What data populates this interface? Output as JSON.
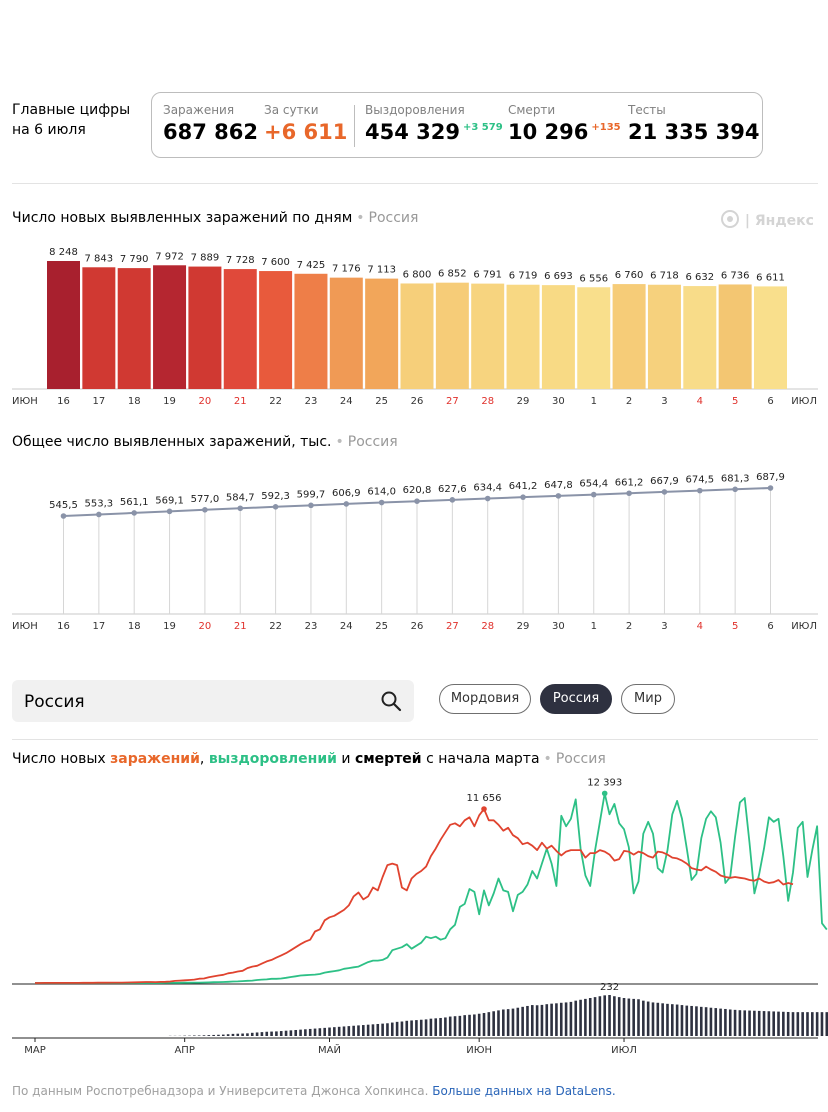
{
  "summary": {
    "title_line1": "Главные цифры",
    "title_line2": "на 6 июля",
    "cases_label": "Заражения",
    "cases_value": "687 862",
    "daily_label": "За сутки",
    "daily_value": "+6 611",
    "recovered_label": "Выздоровления",
    "recovered_value": "454 329",
    "recovered_delta": "+3 579",
    "deaths_label": "Смерти",
    "deaths_value": "10 296",
    "deaths_delta": "+135",
    "tests_label": "Тесты",
    "tests_value": "21 335 394"
  },
  "brand": "Яндекс",
  "colors": {
    "accent_orange": "#e8672a",
    "recovered_green": "#2dc086",
    "deaths_bar": "#2e3140",
    "weekend_red": "#e0302b"
  },
  "search": {
    "value": "Россия"
  },
  "regions": {
    "mordovia": "Мордовия",
    "russia": "Россия",
    "world": "Мир"
  },
  "chart3_title": {
    "p1": "Число новых ",
    "cases": "заражений",
    "p2": ", ",
    "recovered": "выздоровлений",
    "p3": " и ",
    "deaths": "смертей",
    "p4": " с начала марта",
    "region": "Россия"
  },
  "footer": {
    "text": "По данным Роспотребнадзора и Университета Джонса Хопкинса. ",
    "link": "Больше данных на DataLens."
  },
  "chart_data": [
    {
      "type": "bar",
      "title": "Число новых выявленных заражений по дням",
      "region": "Россия",
      "categories": [
        "16",
        "17",
        "18",
        "19",
        "20",
        "21",
        "22",
        "23",
        "24",
        "25",
        "26",
        "27",
        "28",
        "29",
        "30",
        "1",
        "2",
        "3",
        "4",
        "5",
        "6"
      ],
      "values": [
        8248,
        7843,
        7790,
        7972,
        7889,
        7728,
        7600,
        7425,
        7176,
        7113,
        6800,
        6852,
        6791,
        6719,
        6693,
        6556,
        6760,
        6718,
        6632,
        6736,
        6611
      ],
      "labels": [
        "8 248",
        "7 843",
        "7 790",
        "7 972",
        "7 889",
        "7 728",
        "7 600",
        "7 425",
        "7 176",
        "7 113",
        "6 800",
        "6 852",
        "6 791",
        "6 719",
        "6 693",
        "6 556",
        "6 760",
        "6 718",
        "6 632",
        "6 736",
        "6 611"
      ],
      "weekend": [
        false,
        false,
        false,
        false,
        true,
        true,
        false,
        false,
        false,
        false,
        false,
        true,
        true,
        false,
        false,
        false,
        false,
        false,
        true,
        true,
        false
      ],
      "colors": [
        "#a8202e",
        "#d03932",
        "#d03932",
        "#b52630",
        "#d03932",
        "#e0493a",
        "#e85a3c",
        "#ee7e48",
        "#f09a55",
        "#f2a65a",
        "#f6cf7a",
        "#f6cc78",
        "#f7d47f",
        "#f8d883",
        "#f8da85",
        "#f9df8c",
        "#f6cc78",
        "#f6d17d",
        "#f8dc89",
        "#f3c672",
        "#f9df8c"
      ],
      "x_start_label": "ИЮН",
      "x_end_label": "ИЮЛ"
    },
    {
      "type": "line",
      "title": "Общее число выявленных заражений, тыс.",
      "region": "Россия",
      "categories": [
        "16",
        "17",
        "18",
        "19",
        "20",
        "21",
        "22",
        "23",
        "24",
        "25",
        "26",
        "27",
        "28",
        "29",
        "30",
        "1",
        "2",
        "3",
        "4",
        "5",
        "6"
      ],
      "values": [
        545.5,
        553.3,
        561.1,
        569.1,
        577.0,
        584.7,
        592.3,
        599.7,
        606.9,
        614.0,
        620.8,
        627.6,
        634.4,
        641.2,
        647.8,
        654.4,
        661.2,
        667.9,
        674.5,
        681.3,
        687.9
      ],
      "labels": [
        "545,5",
        "553,3",
        "561,1",
        "569,1",
        "577,0",
        "584,7",
        "592,3",
        "599,7",
        "606,9",
        "614,0",
        "620,8",
        "627,6",
        "634,4",
        "641,2",
        "647,8",
        "654,4",
        "661,2",
        "667,9",
        "674,5",
        "681,3",
        "687,9"
      ],
      "x_start_label": "ИЮН",
      "x_end_label": "ИЮЛ"
    },
    {
      "type": "line",
      "month_labels": [
        "МАР",
        "АПР",
        "МАЙ",
        "ИЮН",
        "ИЮЛ"
      ],
      "series": [
        {
          "name": "заражений",
          "color": "#e0432f",
          "values": [
            2,
            3,
            4,
            4,
            5,
            5,
            6,
            7,
            9,
            10,
            12,
            14,
            16,
            18,
            20,
            22,
            25,
            28,
            30,
            34,
            38,
            45,
            58,
            65,
            70,
            63,
            75,
            80,
            100,
            140,
            160,
            180,
            200,
            230,
            290,
            300,
            380,
            440,
            500,
            550,
            650,
            700,
            771,
            820,
            1000,
            1100,
            1150,
            1300,
            1450,
            1550,
            1700,
            1850,
            2000,
            2200,
            2400,
            2600,
            2774,
            2900,
            3450,
            3600,
            4200,
            4400,
            4500,
            4700,
            4900,
            5200,
            5800,
            6060,
            5600,
            5800,
            6400,
            6200,
            7100,
            7900,
            8000,
            7900,
            6400,
            6200,
            7000,
            7300,
            7500,
            7800,
            8500,
            9000,
            9600,
            10100,
            10600,
            10700,
            10500,
            10900,
            11100,
            10500,
            11231,
            11656,
            10900,
            10900,
            10600,
            10200,
            10400,
            9900,
            9700,
            9300,
            9400,
            9200,
            8900,
            9400,
            9000,
            9200,
            8850,
            8550,
            8800,
            8900,
            8900,
            8900,
            8400,
            8700,
            8700,
            8900,
            8800,
            8600,
            8200,
            8300,
            8850,
            8800,
            8600,
            8800,
            8700,
            8500,
            8400,
            8800,
            8750,
            8600,
            8400,
            8350,
            8200,
            8000,
            7700,
            7600,
            7550,
            7800,
            7600,
            7450,
            7200,
            7100,
            7050,
            7100,
            7050,
            7000,
            6900,
            6850,
            7000,
            6800,
            6700,
            6750,
            6900,
            6600,
            6700,
            6611
          ]
        },
        {
          "name": "выздоровлений",
          "color": "#2dc086",
          "values": [
            0,
            0,
            0,
            0,
            0,
            0,
            0,
            0,
            0,
            0,
            0,
            0,
            0,
            0,
            0,
            0,
            0,
            0,
            0,
            0,
            0,
            0,
            0,
            1,
            2,
            3,
            3,
            5,
            8,
            10,
            14,
            18,
            20,
            25,
            30,
            35,
            40,
            55,
            60,
            70,
            80,
            100,
            110,
            130,
            150,
            160,
            200,
            230,
            240,
            280,
            280,
            300,
            350,
            400,
            450,
            500,
            520,
            540,
            560,
            600,
            700,
            750,
            800,
            850,
            950,
            1000,
            1050,
            1100,
            1250,
            1400,
            1500,
            1500,
            1550,
            1700,
            2200,
            2300,
            2400,
            2600,
            2300,
            2500,
            2700,
            3100,
            3000,
            3100,
            2900,
            3000,
            3600,
            3900,
            5100,
            5300,
            6300,
            6100,
            4600,
            6200,
            5200,
            6000,
            7000,
            6200,
            6100,
            4800,
            5900,
            6100,
            6600,
            7500,
            7000,
            8000,
            9000,
            8000,
            6500,
            11200,
            10500,
            11000,
            12300,
            9000,
            7200,
            6500,
            8900,
            10800,
            12700,
            11300,
            12000,
            10700,
            10300,
            9100,
            6000,
            6800,
            10000,
            10800,
            10000,
            7700,
            7400,
            8900,
            11300,
            12200,
            11000,
            9000,
            6900,
            7300,
            9700,
            11000,
            11500,
            11100,
            9400,
            6700,
            7100,
            9800,
            12100,
            12393,
            9400,
            6000,
            7300,
            9000,
            11100,
            10800,
            11000,
            8500,
            5500,
            7400,
            10400,
            10800,
            7100,
            8900,
            10500,
            4000,
            3579
          ]
        },
        {
          "name": "смертей",
          "color": "#2e3140",
          "values": [
            0,
            0,
            0,
            0,
            0,
            0,
            0,
            0,
            0,
            0,
            0,
            0,
            0,
            0,
            0,
            0,
            0,
            0,
            0,
            0,
            0,
            0,
            0,
            0,
            0,
            0,
            0,
            0,
            1,
            1,
            1,
            2,
            2,
            3,
            3,
            4,
            5,
            6,
            7,
            8,
            10,
            12,
            13,
            14,
            15,
            18,
            20,
            22,
            24,
            25,
            26,
            28,
            30,
            32,
            34,
            36,
            38,
            40,
            42,
            44,
            46,
            48,
            50,
            52,
            54,
            56,
            58,
            60,
            62,
            64,
            66,
            68,
            70,
            72,
            76,
            80,
            82,
            86,
            88,
            90,
            92,
            94,
            98,
            100,
            102,
            105,
            110,
            112,
            114,
            118,
            120,
            122,
            126,
            130,
            135,
            140,
            145,
            150,
            152,
            155,
            160,
            165,
            170,
            175,
            174,
            176,
            180,
            183,
            185,
            188,
            190,
            193,
            200,
            205,
            210,
            215,
            220,
            225,
            230,
            232,
            225,
            220,
            215,
            212,
            210,
            208,
            200,
            195,
            190,
            188,
            185,
            182,
            180,
            178,
            175,
            172,
            170,
            168,
            165,
            163,
            160,
            158,
            155,
            153,
            150,
            148,
            146,
            145,
            144,
            143,
            142,
            141,
            140,
            139,
            138,
            137,
            136,
            135,
            135,
            135,
            135,
            135,
            135,
            135,
            135,
            135,
            135,
            135,
            135
          ]
        }
      ],
      "annotations": [
        "11 656",
        "12 393",
        "232"
      ]
    }
  ]
}
